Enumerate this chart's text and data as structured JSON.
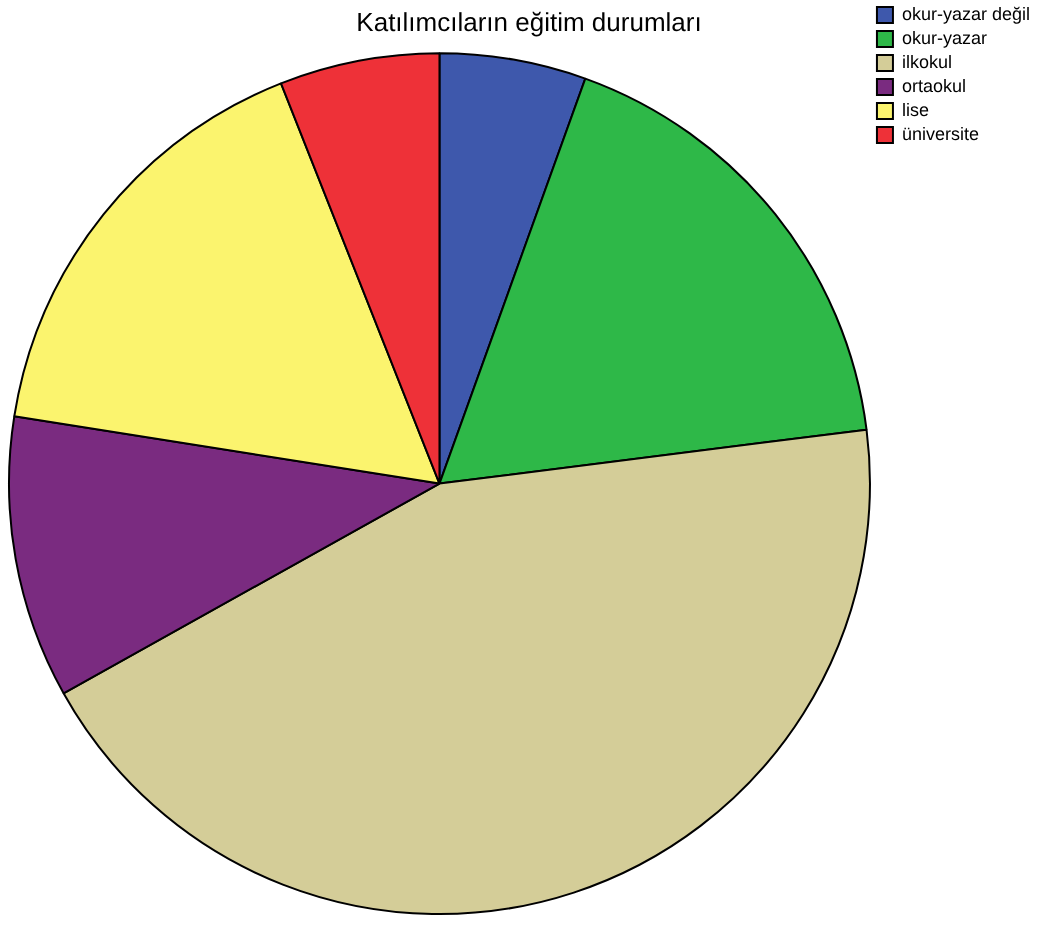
{
  "chart_data": {
    "type": "pie",
    "title": "Katılımcıların eğitim durumları",
    "categories": [
      "okur-yazar değil",
      "okur-yazar",
      "ilkokul",
      "ortaokul",
      "lise",
      "üniversite"
    ],
    "values": [
      5.5,
      17.5,
      43.9,
      10.6,
      16.5,
      6.0
    ],
    "colors": [
      "#3e58ac",
      "#2eb848",
      "#d4cd98",
      "#7a2b80",
      "#fbf46e",
      "#ee3138"
    ],
    "legend": "top right"
  }
}
